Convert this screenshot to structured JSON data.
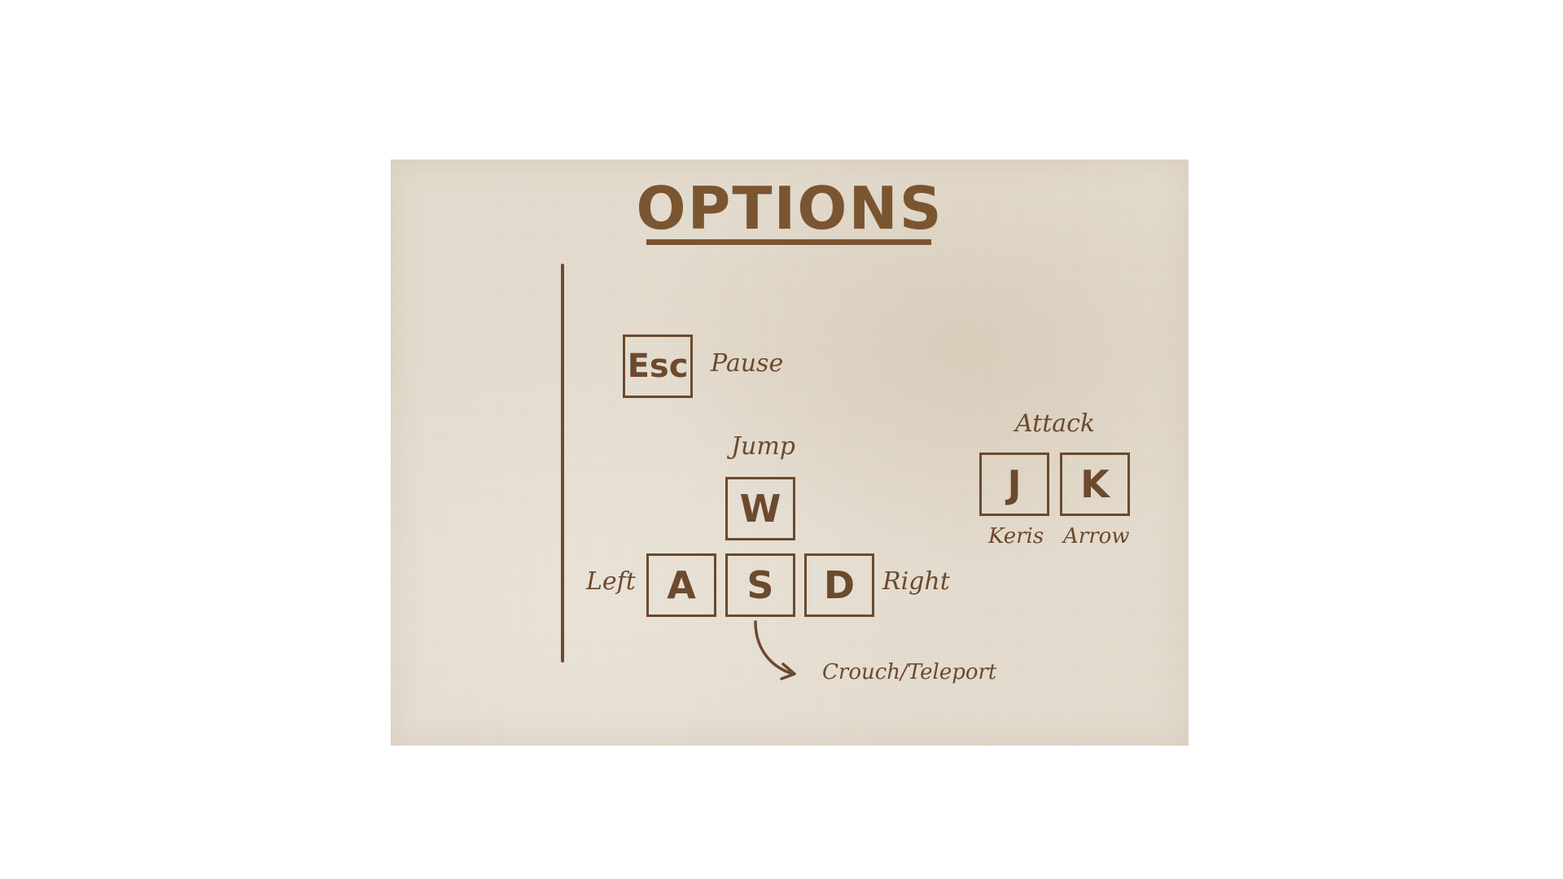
{
  "menu": {
    "title": "OPTIONS"
  },
  "controls": {
    "pause": {
      "key": "Esc",
      "action": "Pause"
    },
    "jump": {
      "key": "W",
      "action": "Jump"
    },
    "left": {
      "key": "A",
      "action": "Left"
    },
    "crouch": {
      "key": "S",
      "action": "Crouch/Teleport"
    },
    "right": {
      "key": "D",
      "action": "Right"
    },
    "attack": {
      "heading": "Attack",
      "keris": {
        "key": "J",
        "action": "Keris"
      },
      "arrow": {
        "key": "K",
        "action": "Arrow"
      }
    }
  },
  "colors": {
    "panel_background": "#e5ddd0",
    "ink": "#6b4a2d",
    "title": "#7a5532"
  }
}
